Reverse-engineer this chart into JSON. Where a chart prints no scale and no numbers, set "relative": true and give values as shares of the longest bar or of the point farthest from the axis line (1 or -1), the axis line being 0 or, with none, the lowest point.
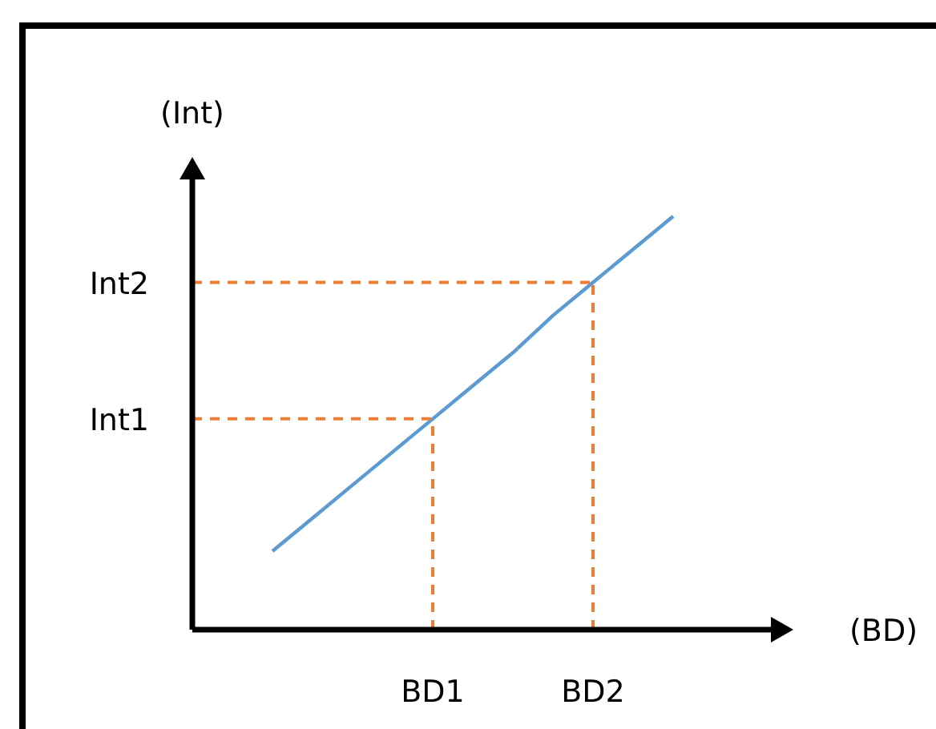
{
  "chart_data": {
    "type": "line",
    "relative": true,
    "xlabel": "(BD)",
    "ylabel": "(Int)",
    "categories": [
      null,
      null,
      null,
      null,
      null,
      null,
      "BD1",
      null,
      null,
      null,
      "BD2",
      null,
      null,
      null,
      null
    ],
    "series": [
      {
        "color": "#5b9bd5",
        "values": [
          null,
          null,
          0.19,
          0.27,
          0.35,
          0.43,
          0.51,
          0.59,
          0.67,
          0.76,
          0.84,
          0.92,
          1,
          null,
          null
        ]
      }
    ],
    "ref_lines": [
      {
        "axis": "x",
        "value": "BD1",
        "color": "#ed7d31",
        "line_style": "dashed"
      },
      {
        "axis": "x",
        "value": "BD2",
        "color": "#ed7d31",
        "line_style": "dashed"
      },
      {
        "axis": "y",
        "value": 0.51,
        "label": "Int1",
        "color": "#ed7d31",
        "line_style": "dashed"
      },
      {
        "axis": "y",
        "value": 0.84,
        "label": "Int2",
        "color": "#ed7d31",
        "line_style": "dashed"
      }
    ]
  }
}
